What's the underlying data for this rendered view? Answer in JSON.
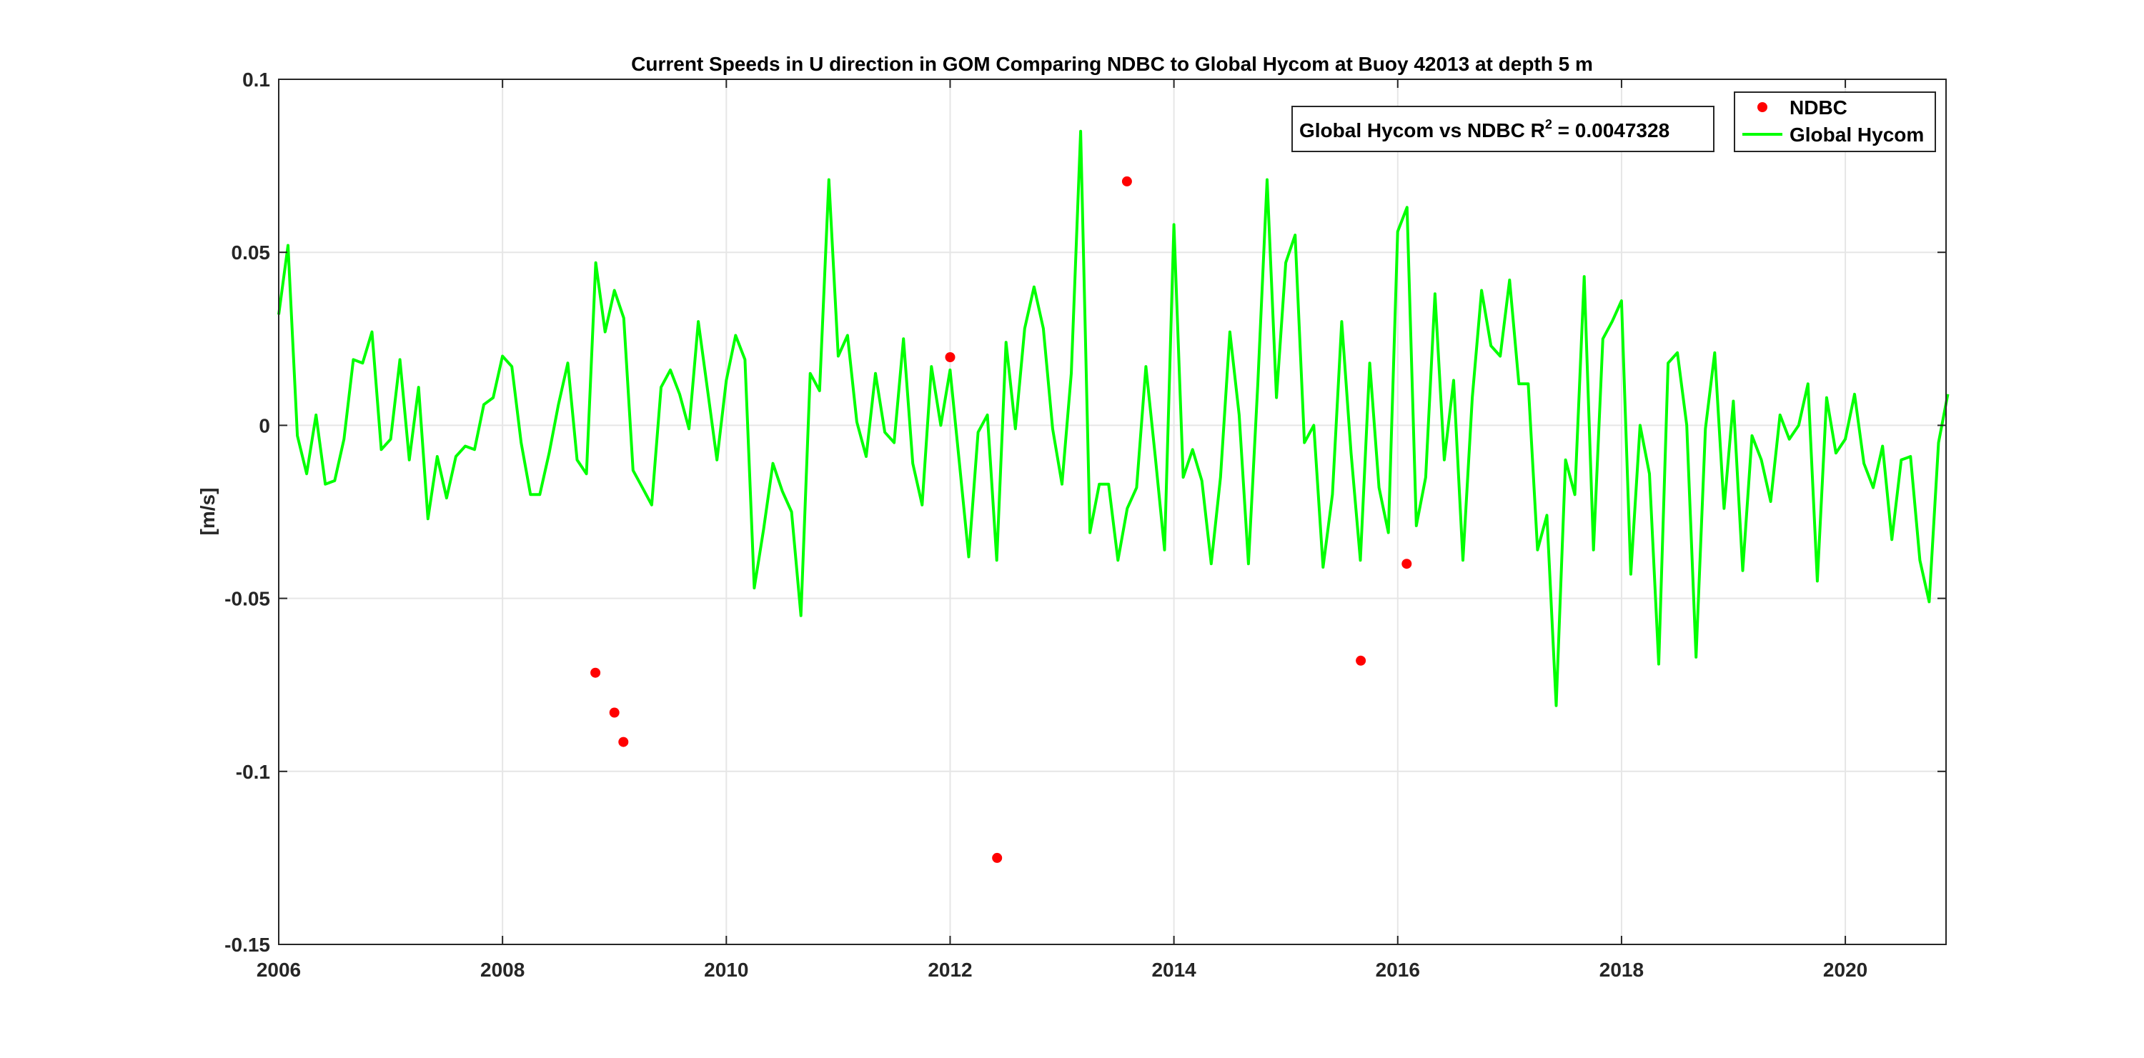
{
  "chart_data": {
    "type": "line",
    "title": "Current Speeds in U direction in GOM Comparing NDBC to Global Hycom at Buoy  42013  at depth  5 m",
    "xlabel": "",
    "ylabel": "[m/s]",
    "xlim": [
      2006,
      2020.9
    ],
    "ylim": [
      -0.15,
      0.1
    ],
    "x_ticks": [
      2006,
      2008,
      2010,
      2012,
      2014,
      2016,
      2018,
      2020
    ],
    "x_tick_labels": [
      "2006",
      "2008",
      "2010",
      "2012",
      "2014",
      "2016",
      "2018",
      "2020"
    ],
    "y_ticks": [
      -0.15,
      -0.1,
      -0.05,
      0,
      0.05,
      0.1
    ],
    "y_tick_labels": [
      "-0.15",
      "-0.1",
      "-0.05",
      "0",
      "0.05",
      "0.1"
    ],
    "grid": true,
    "legend_position": "top-right",
    "annotation": {
      "prefix": "Global Hycom vs NDBC R",
      "superscript": "2",
      "suffix": " = 0.0047328"
    },
    "series": [
      {
        "name": "NDBC",
        "kind": "scatter",
        "color": "#ff0000",
        "points": [
          [
            2008.83,
            -0.0715
          ],
          [
            2009.0,
            -0.083
          ],
          [
            2009.08,
            -0.0915
          ],
          [
            2012.0,
            0.0197
          ],
          [
            2012.42,
            -0.125
          ],
          [
            2013.58,
            0.0705
          ],
          [
            2015.67,
            -0.068
          ],
          [
            2016.08,
            -0.04
          ]
        ]
      },
      {
        "name": "Global Hycom",
        "kind": "line",
        "color": "#00ff00",
        "x_start": 2006.0,
        "x_step": 0.08333,
        "values": [
          0.032,
          0.052,
          -0.003,
          -0.014,
          0.003,
          -0.017,
          -0.016,
          -0.004,
          0.019,
          0.018,
          0.027,
          -0.007,
          -0.004,
          0.019,
          -0.01,
          0.011,
          -0.027,
          -0.009,
          -0.021,
          -0.009,
          -0.006,
          -0.007,
          0.006,
          0.008,
          0.02,
          0.017,
          -0.005,
          -0.02,
          -0.02,
          -0.008,
          0.006,
          0.018,
          -0.01,
          -0.014,
          0.047,
          0.027,
          0.039,
          0.031,
          -0.013,
          -0.018,
          -0.023,
          0.011,
          0.016,
          0.009,
          -0.001,
          0.03,
          0.01,
          -0.01,
          0.013,
          0.026,
          0.019,
          -0.047,
          -0.03,
          -0.011,
          -0.019,
          -0.025,
          -0.055,
          0.015,
          0.01,
          0.071,
          0.02,
          0.026,
          0.001,
          -0.009,
          0.015,
          -0.002,
          -0.005,
          0.025,
          -0.011,
          -0.023,
          0.017,
          0.0,
          0.016,
          -0.011,
          -0.038,
          -0.002,
          0.003,
          -0.039,
          0.024,
          -0.001,
          0.028,
          0.04,
          0.028,
          -0.001,
          -0.017,
          0.015,
          0.085,
          -0.031,
          -0.017,
          -0.017,
          -0.039,
          -0.024,
          -0.018,
          0.017,
          -0.009,
          -0.036,
          0.058,
          -0.015,
          -0.007,
          -0.016,
          -0.04,
          -0.015,
          0.027,
          0.003,
          -0.04,
          0.012,
          0.071,
          0.008,
          0.047,
          0.055,
          -0.005,
          0.0,
          -0.041,
          -0.02,
          0.03,
          -0.008,
          -0.039,
          0.018,
          -0.018,
          -0.031,
          0.056,
          0.063,
          -0.029,
          -0.015,
          0.038,
          -0.01,
          0.013,
          -0.039,
          0.008,
          0.039,
          0.023,
          0.02,
          0.042,
          0.012,
          0.012,
          -0.036,
          -0.026,
          -0.081,
          -0.01,
          -0.02,
          0.043,
          -0.036,
          0.025,
          0.03,
          0.036,
          -0.043,
          0.0,
          -0.014,
          -0.069,
          0.018,
          0.021,
          0.0,
          -0.067,
          -0.001,
          0.021,
          -0.024,
          0.007,
          -0.042,
          -0.003,
          -0.01,
          -0.022,
          0.003,
          -0.004,
          0.0,
          0.012,
          -0.045,
          0.008,
          -0.008,
          -0.004,
          0.009,
          -0.011,
          -0.018,
          -0.006,
          -0.033,
          -0.01,
          -0.009,
          -0.039,
          -0.051,
          -0.005,
          0.009
        ]
      }
    ]
  }
}
